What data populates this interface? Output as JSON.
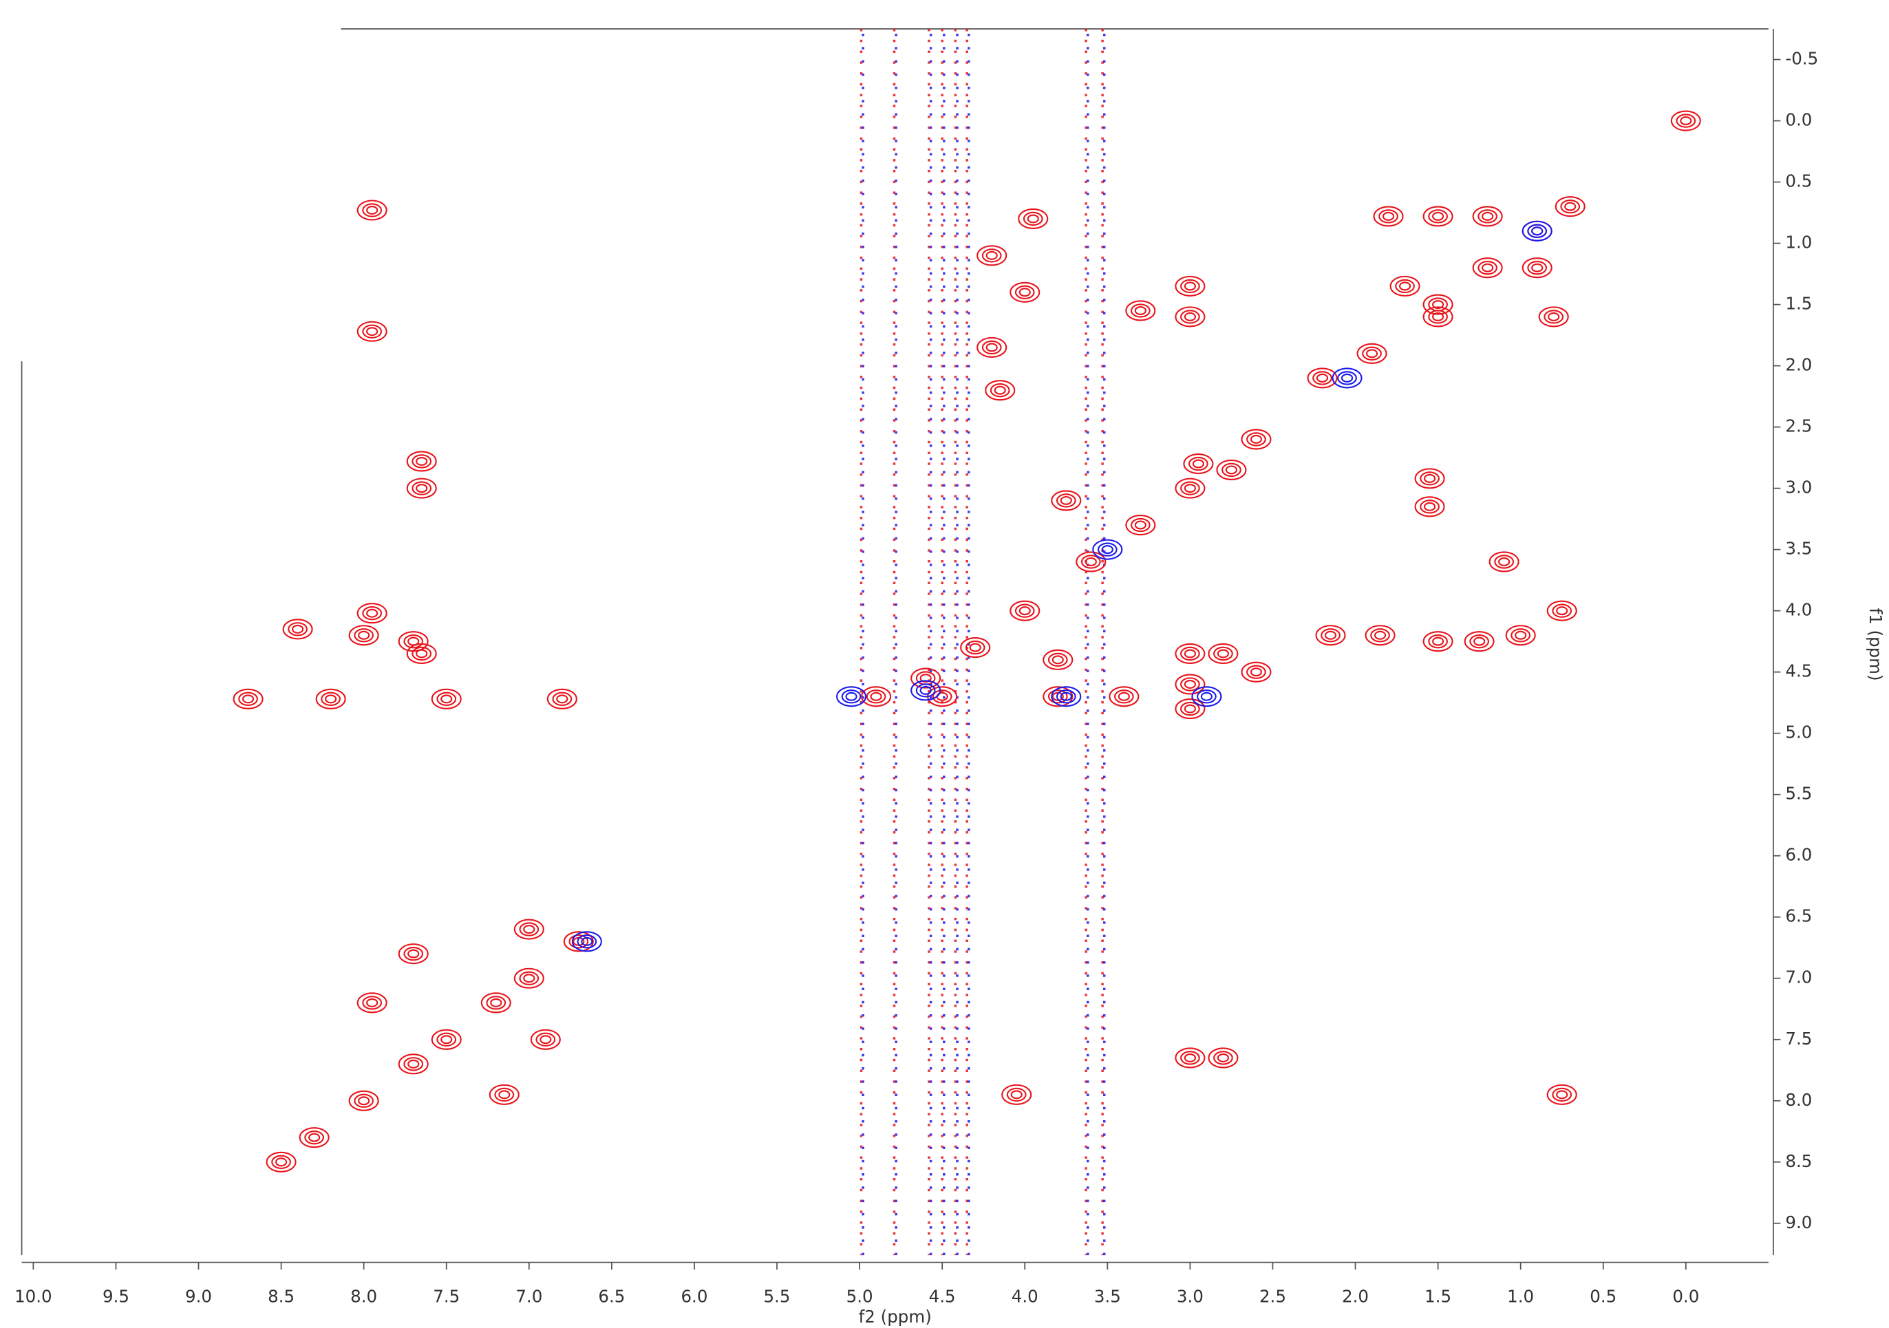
{
  "chart_data": {
    "type": "scatter",
    "xlabel": "f2 (ppm)",
    "ylabel": "f1 (ppm)",
    "xlim": [
      10.07,
      -0.5
    ],
    "ylim": [
      9.26,
      -0.75
    ],
    "xticks": [
      {
        "value": 10,
        "label": "10.0"
      },
      9.5,
      {
        "value": 9,
        "label": "9.0"
      },
      8.5,
      {
        "value": 8,
        "label": "8.0"
      },
      7.5,
      {
        "value": 7,
        "label": "7.0"
      },
      6.5,
      {
        "value": 6,
        "label": "6.0"
      },
      5.5,
      {
        "value": 5,
        "label": "5.0"
      },
      4.5,
      {
        "value": 4,
        "label": "4.0"
      },
      3.5,
      {
        "value": 3,
        "label": "3.0"
      },
      2.5,
      {
        "value": 2,
        "label": "2.0"
      },
      1.5,
      {
        "value": 1,
        "label": "1.0"
      },
      0.5,
      {
        "value": 0,
        "label": "0.0"
      }
    ],
    "yticks": [
      -0.5,
      {
        "value": 0,
        "label": "0.0"
      },
      0.5,
      {
        "value": 1,
        "label": "1.0"
      },
      1.5,
      {
        "value": 2,
        "label": "2.0"
      },
      2.5,
      {
        "value": 3,
        "label": "3.0"
      },
      3.5,
      {
        "value": 4,
        "label": "4.0"
      },
      4.5,
      {
        "value": 5,
        "label": "5.0"
      },
      5.5,
      {
        "value": 6,
        "label": "6.0"
      },
      6.5,
      {
        "value": 7,
        "label": "7.0"
      },
      7.5,
      {
        "value": 8,
        "label": "8.0"
      },
      8.5,
      {
        "value": 9,
        "label": "9.0"
      }
    ],
    "streaks_x": [
      4.58,
      4.5,
      4.42,
      4.35,
      3.63,
      3.53,
      4.99,
      4.79
    ],
    "series": [
      {
        "color": "#e8141a",
        "x": [
          0.7,
          0.9,
          1.2,
          1.5,
          1.9,
          2.2,
          2.6,
          3.0,
          3.3,
          3.6,
          4.0,
          4.3,
          4.6,
          6.7,
          7.0,
          7.2,
          7.5,
          7.7,
          8.0,
          8.3,
          8.5,
          0.0,
          1.8,
          1.5,
          1.2,
          0.9,
          0.8,
          1.5,
          1.7,
          3.0,
          3.0,
          3.3,
          3.95,
          4.2,
          4.0,
          4.2,
          4.15,
          1.55,
          1.55,
          1.1,
          2.15,
          1.85,
          1.5,
          1.25,
          1.0,
          0.75,
          3.0,
          2.8,
          2.6,
          3.0,
          3.0,
          2.95,
          2.75,
          3.75,
          3.8,
          3.4,
          3.8,
          3.0,
          2.8,
          4.05,
          0.75,
          7.95,
          7.95,
          7.65,
          7.65,
          7.95,
          7.65,
          8.2,
          7.5,
          6.8,
          8.7,
          7.7,
          8.0,
          8.4,
          7.7,
          7.0,
          7.95,
          7.15,
          6.9,
          4.5,
          4.9
        ],
        "values": [
          0.7,
          0.9,
          1.2,
          1.5,
          1.9,
          2.1,
          2.6,
          3.0,
          3.3,
          3.6,
          4.0,
          4.3,
          4.55,
          6.7,
          7.0,
          7.2,
          7.5,
          7.7,
          8.0,
          8.3,
          8.5,
          0.0,
          0.78,
          0.78,
          0.78,
          1.2,
          1.6,
          1.6,
          1.35,
          1.35,
          1.6,
          1.55,
          0.8,
          1.1,
          1.4,
          1.85,
          2.2,
          2.92,
          3.15,
          3.6,
          4.2,
          4.2,
          4.25,
          4.25,
          4.2,
          4.0,
          4.35,
          4.35,
          4.5,
          4.6,
          4.8,
          2.8,
          2.85,
          3.1,
          4.4,
          4.7,
          4.7,
          7.65,
          7.65,
          7.95,
          7.95,
          0.73,
          1.72,
          2.78,
          3.0,
          4.02,
          4.35,
          4.72,
          4.72,
          4.72,
          4.72,
          4.25,
          4.2,
          4.15,
          6.8,
          6.6,
          7.2,
          7.95,
          7.5,
          4.7,
          4.7
        ]
      },
      {
        "color": "#1a1aee",
        "x": [
          5.05,
          4.6,
          3.5,
          3.75,
          2.9,
          2.05,
          6.65,
          0.9
        ],
        "values": [
          4.7,
          4.65,
          3.5,
          4.7,
          4.7,
          2.1,
          6.7,
          0.9
        ]
      }
    ]
  }
}
